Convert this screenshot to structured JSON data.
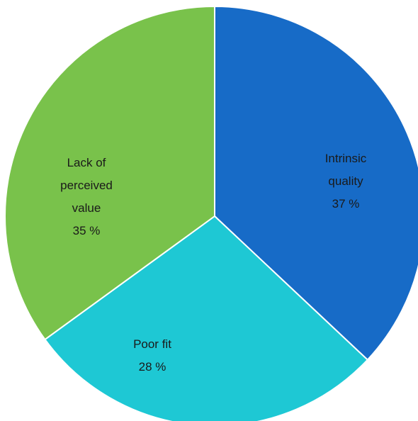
{
  "chart_data": {
    "type": "pie",
    "categories": [
      "Intrinsic quality",
      "Poor fit",
      "Lack of perceived value"
    ],
    "values": [
      37,
      28,
      35
    ],
    "value_labels": [
      "37 %",
      "28 %",
      "35 %"
    ],
    "colors": [
      "#176bc7",
      "#1ec8d4",
      "#79c24b"
    ]
  }
}
